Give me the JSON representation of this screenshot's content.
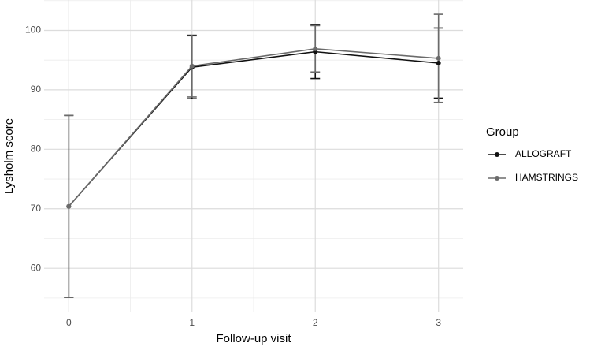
{
  "chart_data": {
    "type": "line",
    "x_label": "Follow-up visit",
    "y_label": "Lysholm score",
    "x": [
      0,
      1,
      2,
      3
    ],
    "series": [
      {
        "name": "ALLOGRAFT",
        "color": "#111111",
        "values": [
          70.4,
          93.8,
          96.4,
          94.5
        ],
        "errors": [
          15.3,
          5.3,
          4.5,
          5.9
        ]
      },
      {
        "name": "HAMSTRINGS",
        "color": "#6b6b6b",
        "values": [
          70.4,
          94.0,
          96.9,
          95.3
        ],
        "errors": [
          15.3,
          5.2,
          3.9,
          7.4
        ]
      }
    ],
    "xlim": [
      -0.2,
      3.2
    ],
    "xticks": [
      0,
      1,
      2,
      3
    ],
    "ylim": [
      52.6,
      105.1
    ],
    "yticks": [
      60,
      70,
      80,
      90,
      100
    ],
    "grid": true,
    "legend_title": "Group",
    "legend_position": "right"
  }
}
